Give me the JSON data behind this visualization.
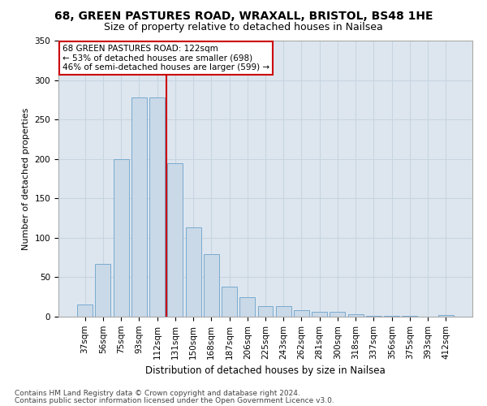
{
  "title1": "68, GREEN PASTURES ROAD, WRAXALL, BRISTOL, BS48 1HE",
  "title2": "Size of property relative to detached houses in Nailsea",
  "xlabel": "Distribution of detached houses by size in Nailsea",
  "ylabel": "Number of detached properties",
  "categories": [
    "37sqm",
    "56sqm",
    "75sqm",
    "93sqm",
    "112sqm",
    "131sqm",
    "150sqm",
    "168sqm",
    "187sqm",
    "206sqm",
    "225sqm",
    "243sqm",
    "262sqm",
    "281sqm",
    "300sqm",
    "318sqm",
    "337sqm",
    "356sqm",
    "375sqm",
    "393sqm",
    "412sqm"
  ],
  "values": [
    15,
    67,
    200,
    278,
    278,
    195,
    113,
    79,
    38,
    25,
    13,
    13,
    8,
    6,
    6,
    3,
    1,
    1,
    1,
    0,
    2
  ],
  "bar_color": "#c9d9e8",
  "bar_edge_color": "#7aaacf",
  "red_line_x": 4.5,
  "annotation_text": "68 GREEN PASTURES ROAD: 122sqm\n← 53% of detached houses are smaller (698)\n46% of semi-detached houses are larger (599) →",
  "annotation_box_color": "#ffffff",
  "annotation_box_edge": "#cc0000",
  "red_line_color": "#cc0000",
  "grid_color": "#c8d4e0",
  "background_color": "#dde6ef",
  "ylim": [
    0,
    350
  ],
  "yticks": [
    0,
    50,
    100,
    150,
    200,
    250,
    300,
    350
  ],
  "footer1": "Contains HM Land Registry data © Crown copyright and database right 2024.",
  "footer2": "Contains public sector information licensed under the Open Government Licence v3.0.",
  "title1_fontsize": 10,
  "title2_fontsize": 9,
  "xlabel_fontsize": 8.5,
  "ylabel_fontsize": 8,
  "tick_fontsize": 7.5,
  "footer_fontsize": 6.5,
  "annot_fontsize": 7.5
}
